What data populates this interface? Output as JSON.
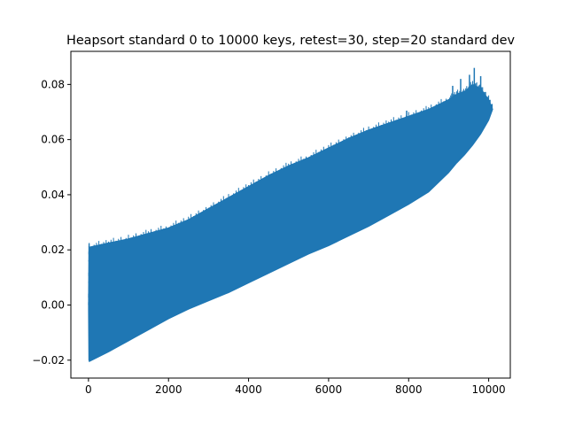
{
  "chart_data": {
    "type": "area",
    "title": "Heapsort standard 0 to 10000 keys, retest=30, step=20 standard dev",
    "xlabel": "",
    "ylabel": "",
    "xlim": [
      -440,
      10540
    ],
    "ylim": [
      -0.0265,
      0.092
    ],
    "x_ticks": [
      0,
      2000,
      4000,
      6000,
      8000,
      10000
    ],
    "x_tick_labels": [
      "0",
      "2000",
      "4000",
      "6000",
      "8000",
      "10000"
    ],
    "y_ticks": [
      -0.02,
      0.0,
      0.02,
      0.04,
      0.06,
      0.08
    ],
    "y_tick_labels": [
      "−0.02",
      "0.00",
      "0.02",
      "0.04",
      "0.06",
      "0.08"
    ],
    "grid": false,
    "legend": "none",
    "series": [
      {
        "color": "#1f77b4",
        "upper": {
          "x": [
            0,
            10,
            20,
            500,
            1000,
            1500,
            2000,
            2500,
            3000,
            3500,
            4000,
            4500,
            5000,
            5500,
            6000,
            6500,
            7000,
            7500,
            8000,
            8500,
            9000,
            9200,
            9400,
            9600,
            9800,
            10000,
            10100
          ],
          "y": [
            0.0,
            0.021,
            0.021,
            0.0225,
            0.024,
            0.026,
            0.028,
            0.031,
            0.035,
            0.039,
            0.043,
            0.047,
            0.0505,
            0.0535,
            0.057,
            0.0605,
            0.0635,
            0.066,
            0.0685,
            0.071,
            0.0745,
            0.0765,
            0.0775,
            0.08,
            0.0785,
            0.0745,
            0.071
          ]
        },
        "lower": {
          "x": [
            0,
            10,
            20,
            500,
            1000,
            1500,
            2000,
            2500,
            3000,
            3500,
            4000,
            4500,
            5000,
            5500,
            6000,
            6500,
            7000,
            7500,
            8000,
            8500,
            9000,
            9200,
            9400,
            9600,
            9800,
            10000,
            10100
          ],
          "y": [
            -0.002,
            -0.02,
            -0.0205,
            -0.017,
            -0.013,
            -0.009,
            -0.005,
            -0.0015,
            0.0015,
            0.0045,
            0.008,
            0.0115,
            0.015,
            0.0185,
            0.0215,
            0.025,
            0.0285,
            0.0325,
            0.0365,
            0.041,
            0.048,
            0.0515,
            0.0545,
            0.058,
            0.062,
            0.067,
            0.071
          ]
        },
        "spikes": [
          {
            "x": 3300,
            "y": 0.0355
          },
          {
            "x": 4700,
            "y": 0.0465
          },
          {
            "x": 5100,
            "y": 0.0503
          },
          {
            "x": 6350,
            "y": 0.0595
          },
          {
            "x": 7950,
            "y": 0.0705
          },
          {
            "x": 9100,
            "y": 0.0795
          },
          {
            "x": 9300,
            "y": 0.082
          },
          {
            "x": 9520,
            "y": 0.0835
          },
          {
            "x": 9640,
            "y": 0.086
          },
          {
            "x": 9800,
            "y": 0.083
          }
        ]
      }
    ]
  }
}
